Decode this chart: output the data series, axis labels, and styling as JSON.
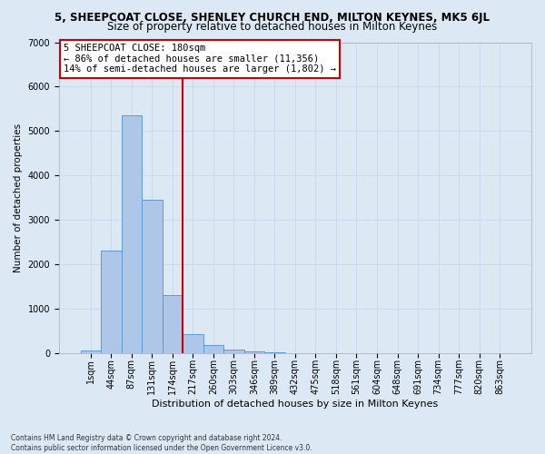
{
  "title_line1": "5, SHEEPCOAT CLOSE, SHENLEY CHURCH END, MILTON KEYNES, MK5 6JL",
  "title_line2": "Size of property relative to detached houses in Milton Keynes",
  "xlabel": "Distribution of detached houses by size in Milton Keynes",
  "ylabel": "Number of detached properties",
  "footnote": "Contains HM Land Registry data © Crown copyright and database right 2024.\nContains public sector information licensed under the Open Government Licence v3.0.",
  "bar_labels": [
    "1sqm",
    "44sqm",
    "87sqm",
    "131sqm",
    "174sqm",
    "217sqm",
    "260sqm",
    "303sqm",
    "346sqm",
    "389sqm",
    "432sqm",
    "475sqm",
    "518sqm",
    "561sqm",
    "604sqm",
    "648sqm",
    "691sqm",
    "734sqm",
    "777sqm",
    "820sqm",
    "863sqm"
  ],
  "bar_values": [
    60,
    2300,
    5350,
    3450,
    1300,
    430,
    180,
    80,
    30,
    5,
    2,
    0,
    0,
    0,
    0,
    0,
    0,
    0,
    0,
    0,
    0
  ],
  "bar_color": "#aec6e8",
  "bar_edge_color": "#5b9bd5",
  "grid_color": "#c8d8e8",
  "background_color": "#dce9f5",
  "vline_color": "#cc0000",
  "annotation_text": "5 SHEEPCOAT CLOSE: 180sqm\n← 86% of detached houses are smaller (11,356)\n14% of semi-detached houses are larger (1,802) →",
  "annotation_box_color": "#ffffff",
  "annotation_box_edge": "#cc0000",
  "ylim": [
    0,
    7000
  ],
  "yticks": [
    0,
    1000,
    2000,
    3000,
    4000,
    5000,
    6000,
    7000
  ],
  "title1_fontsize": 8.5,
  "title2_fontsize": 8.5,
  "xlabel_fontsize": 8.0,
  "ylabel_fontsize": 7.5,
  "tick_fontsize": 7.0,
  "annotation_fontsize": 7.5,
  "footnote_fontsize": 5.5
}
